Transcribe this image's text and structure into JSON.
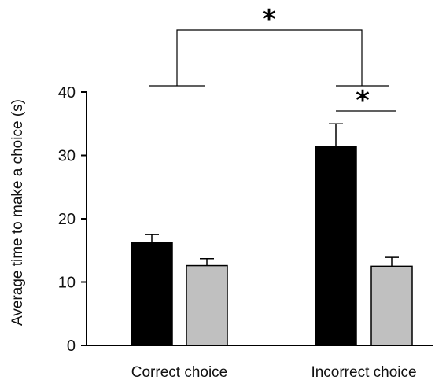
{
  "chart_data": {
    "type": "bar",
    "ylabel": "Average time to make a  choice (s)",
    "categories": [
      "Correct choice",
      "Incorrect choice"
    ],
    "ylim": [
      0,
      40
    ],
    "yticks": [
      0,
      10,
      20,
      30,
      40
    ],
    "series": [
      {
        "color": "#000000",
        "values": [
          16.3,
          31.4
        ],
        "errors": [
          1.2,
          3.6
        ]
      },
      {
        "color": "#c0c0c0",
        "values": [
          12.6,
          12.5
        ],
        "errors": [
          1.1,
          1.4
        ]
      }
    ],
    "annotations": [
      {
        "label": "*",
        "between": "Correct choice vs Incorrect choice"
      },
      {
        "label": "*",
        "between": "Incorrect choice: black vs grey"
      }
    ],
    "grid": false,
    "legend": "none"
  }
}
